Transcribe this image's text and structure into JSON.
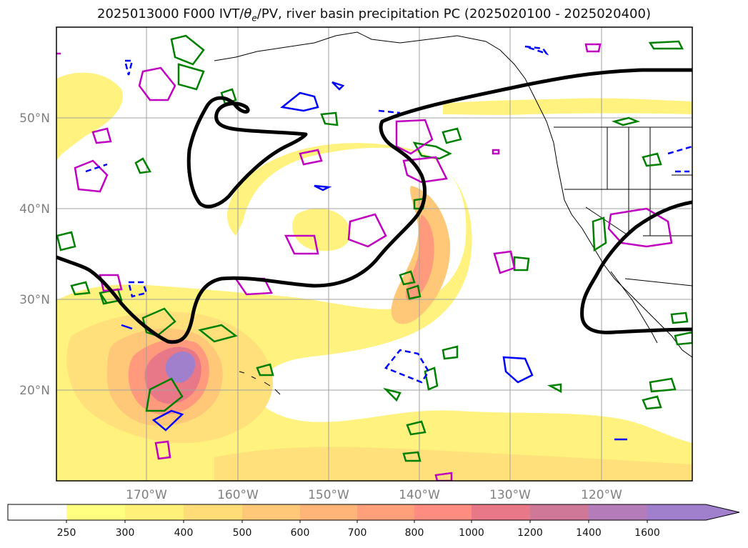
{
  "title": {
    "prefix": "2025013000 F000 IVT/",
    "theta": "θ",
    "theta_sub": "e",
    "suffix": "/PV, river basin precipitation PC (2025020100 - 2025020400)"
  },
  "map": {
    "lat_range": [
      10,
      60
    ],
    "lon_range": [
      -180,
      -110
    ],
    "lon_ticks": [
      {
        "lon": -170,
        "label": "170°W"
      },
      {
        "lon": -160,
        "label": "160°W"
      },
      {
        "lon": -150,
        "label": "150°W"
      },
      {
        "lon": -140,
        "label": "140°W"
      },
      {
        "lon": -130,
        "label": "130°W"
      },
      {
        "lon": -120,
        "label": "120°W"
      }
    ],
    "lat_ticks": [
      {
        "lat": 20,
        "label": "20°N"
      },
      {
        "lat": 30,
        "label": "30°N"
      },
      {
        "lat": 40,
        "label": "40°N"
      },
      {
        "lat": 50,
        "label": "50°N"
      }
    ],
    "grid": true
  },
  "colorbar": {
    "levels": [
      "250",
      "300",
      "400",
      "500",
      "600",
      "700",
      "800",
      "1000",
      "1200",
      "1400",
      "1600"
    ],
    "colors": [
      "#ffffff",
      "#ffff80",
      "#fff07a",
      "#ffdc78",
      "#ffc878",
      "#ffb478",
      "#ffa07a",
      "#ff8c80",
      "#e87888",
      "#d07898",
      "#b47cb8",
      "#a080cc"
    ],
    "extend": "max"
  },
  "colors": {
    "theta_e_contour": "#000000",
    "pv_green": "#008000",
    "pv_magenta": "#c000c0",
    "pv_blue": "#0000ff",
    "grid": "#a0a0a0",
    "tick_label": "#7f7f7f"
  }
}
